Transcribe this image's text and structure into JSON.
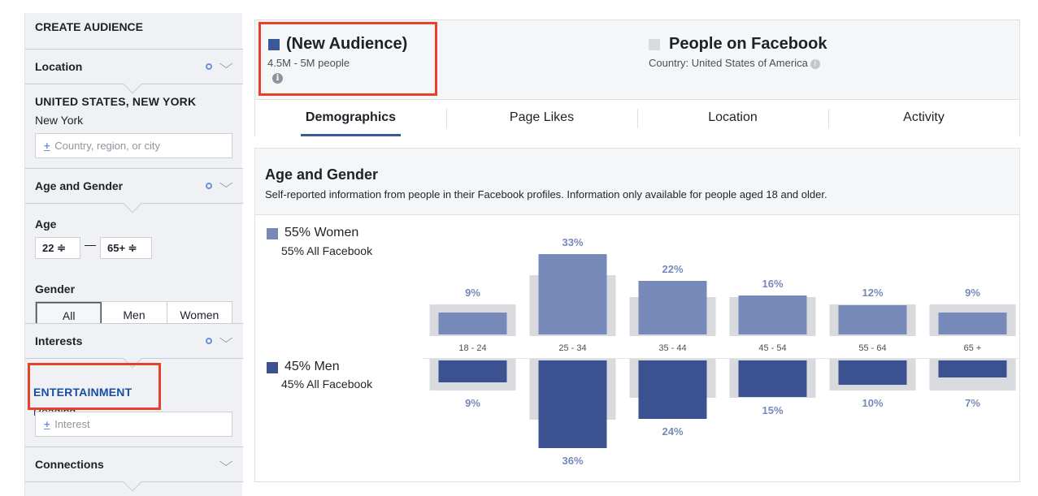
{
  "sidebar": {
    "title": "CREATE AUDIENCE",
    "sections": {
      "location": "Location",
      "age_gender": "Age and Gender",
      "interests": "Interests",
      "connections": "Connections"
    },
    "location": {
      "heading": "UNITED STATES, NEW YORK",
      "value": "New York",
      "placeholder": "Country, region, or city"
    },
    "age": {
      "label": "Age",
      "min": "22 ≑",
      "max": "65+ ≑"
    },
    "gender": {
      "label": "Gender",
      "options": [
        "All",
        "Men",
        "Women"
      ],
      "selected": "All"
    },
    "interests": {
      "heading": "ENTERTAINMENT",
      "value": "Reading",
      "placeholder": "Interest"
    },
    "plus_glyph": "+"
  },
  "audience": {
    "name": "(New Audience)",
    "size": "4.5M - 5M people",
    "color": "#3b5998",
    "info_glyph": "i"
  },
  "comparison": {
    "name": "People on Facebook",
    "country": "Country: United States of America",
    "color": "#d8dade",
    "info_glyph": "i"
  },
  "tabs": [
    "Demographics",
    "Page Likes",
    "Location",
    "Activity"
  ],
  "active_tab": "Demographics",
  "age_gender": {
    "title": "Age and Gender",
    "description": "Self-reported information from people in their Facebook profiles. Information only available for people aged 18 and older.",
    "women_label": "55% Women",
    "women_sub": "55% All Facebook",
    "men_label": "45% Men",
    "men_sub": "45% All Facebook"
  },
  "chart_data": {
    "type": "bar",
    "categories": [
      "18 - 24",
      "25 - 34",
      "35 - 44",
      "45 - 54",
      "55 - 64",
      "65 +"
    ],
    "series": [
      {
        "name": "55% Women",
        "values": [
          9,
          33,
          22,
          16,
          12,
          9
        ],
        "labels": [
          "9%",
          "33%",
          "22%",
          "16%",
          "12%",
          "9%"
        ],
        "color": "#7689b9"
      },
      {
        "name": "45% Men",
        "values": [
          9,
          36,
          24,
          15,
          10,
          7
        ],
        "labels": [
          "9%",
          "36%",
          "24%",
          "15%",
          "10%",
          "7%"
        ],
        "color": "#3b5190"
      }
    ],
    "comparison_women": [
      13,
      25,
      16,
      16,
      13,
      13
    ],
    "comparison_men": [
      13,
      25,
      16,
      16,
      13,
      13
    ],
    "comparison_color": "#d8dade"
  }
}
